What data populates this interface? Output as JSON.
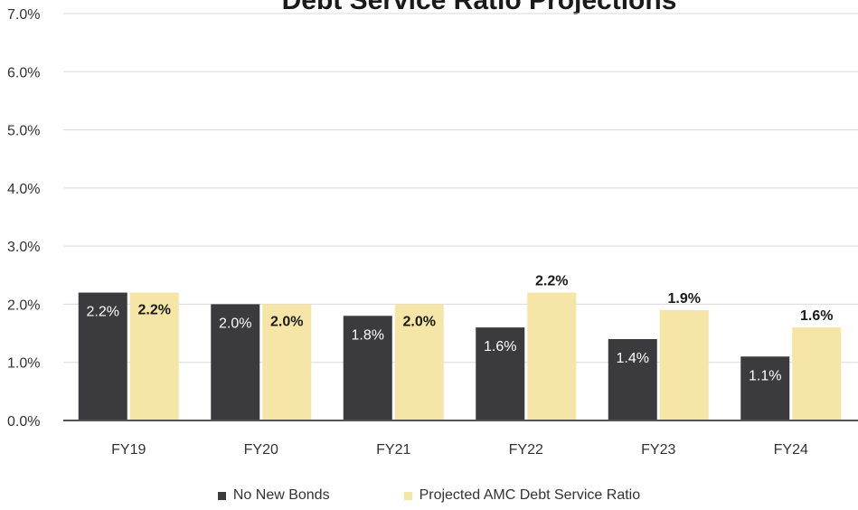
{
  "chart_data": {
    "type": "bar",
    "title": "Debt Service Ratio Projections",
    "categories": [
      "FY19",
      "FY20",
      "FY21",
      "FY22",
      "FY23",
      "FY24"
    ],
    "series": [
      {
        "name": "No New Bonds",
        "color": "#3b3b3d",
        "values": [
          2.2,
          2.0,
          1.8,
          1.6,
          1.4,
          1.1
        ],
        "labels": [
          "2.2%",
          "2.0%",
          "1.8%",
          "1.6%",
          "1.4%",
          "1.1%"
        ]
      },
      {
        "name": "Projected AMC Debt Service Ratio",
        "color": "#f5e6a8",
        "values": [
          2.2,
          2.0,
          2.0,
          2.2,
          1.9,
          1.6
        ],
        "labels": [
          "2.2%",
          "2.0%",
          "2.0%",
          "2.2%",
          "1.9%",
          "1.6%"
        ]
      }
    ],
    "y_ticks": [
      "0.0%",
      "1.0%",
      "2.0%",
      "3.0%",
      "4.0%",
      "5.0%",
      "6.0%",
      "7.0%"
    ],
    "ylim": [
      0,
      7
    ],
    "grid": true,
    "legend_position": "bottom"
  }
}
